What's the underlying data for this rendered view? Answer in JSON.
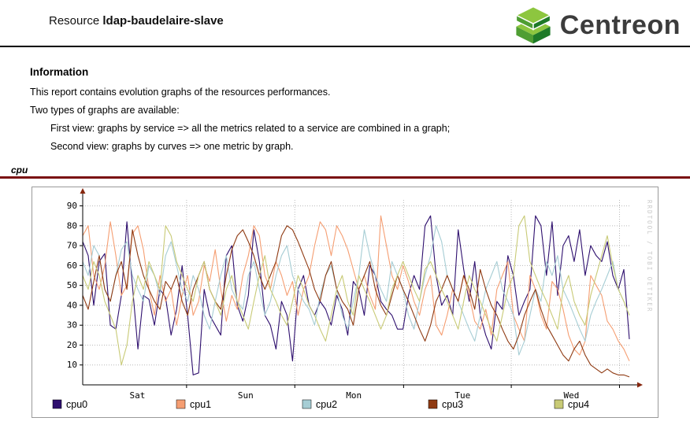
{
  "header": {
    "prefix": "Resource",
    "resource_name": "ldap-baudelaire-slave",
    "logo_text": "Centreon",
    "logo_colors": {
      "top": "#8dc63f",
      "left": "#4f9e33",
      "right": "#1e7a28"
    }
  },
  "info": {
    "title": "Information",
    "intro": "This report contains evolution graphs of the resources performances.",
    "subtitle": "Two types of graphs are available:",
    "items": [
      "First view: graphs by service => all the metrics related to a service are combined in a graph;",
      "Second view: graphs by curves => one metric by graph."
    ]
  },
  "section": {
    "label": "cpu",
    "divider_color": "#7a1012"
  },
  "chart_data": {
    "type": "line",
    "title": "cpu",
    "watermark": "RRDTOOL / TOBI OETIKER",
    "ylim": [
      0,
      93
    ],
    "yticks": [
      10,
      20,
      30,
      40,
      50,
      60,
      70,
      80,
      90
    ],
    "xticklabels": [
      "Sat",
      "Sun",
      "Mon",
      "Tue",
      "Wed"
    ],
    "xtick_positions": [
      0.1,
      0.298,
      0.496,
      0.695,
      0.894
    ],
    "grid_positions": [
      0.19,
      0.388,
      0.587,
      0.784,
      0.982
    ],
    "grid": true,
    "legend_position": "bottom",
    "colors": {
      "grid": "#b9b9b9",
      "axis": "#000000",
      "arrow": "#86260e",
      "watermark": "#c9c9c9"
    },
    "series": [
      {
        "name": "cpu0",
        "color": "#2e0f6e",
        "values": [
          72,
          65,
          40,
          62,
          66,
          30,
          28,
          45,
          82,
          50,
          18,
          45,
          43,
          30,
          48,
          44,
          25,
          38,
          60,
          35,
          5,
          6,
          48,
          35,
          30,
          25,
          65,
          70,
          40,
          32,
          45,
          78,
          62,
          35,
          30,
          18,
          42,
          35,
          12,
          48,
          55,
          40,
          35,
          42,
          38,
          30,
          45,
          38,
          25,
          52,
          48,
          35,
          60,
          55,
          42,
          38,
          35,
          28,
          28,
          45,
          55,
          48,
          80,
          85,
          55,
          40,
          45,
          35,
          78,
          58,
          42,
          62,
          35,
          25,
          18,
          42,
          38,
          65,
          55,
          35,
          42,
          48,
          85,
          80,
          55,
          82,
          45,
          70,
          75,
          62,
          78,
          55,
          70,
          65,
          62,
          72,
          55,
          48,
          58,
          23
        ]
      },
      {
        "name": "cpu1",
        "color": "#f59e72",
        "values": [
          75,
          80,
          55,
          48,
          60,
          82,
          65,
          45,
          50,
          76,
          80,
          68,
          48,
          35,
          55,
          42,
          48,
          30,
          45,
          55,
          35,
          42,
          60,
          52,
          68,
          48,
          32,
          45,
          38,
          55,
          65,
          80,
          75,
          55,
          48,
          62,
          55,
          45,
          52,
          35,
          48,
          55,
          70,
          82,
          78,
          65,
          80,
          75,
          68,
          58,
          48,
          55,
          45,
          38,
          85,
          70,
          55,
          48,
          60,
          52,
          42,
          35,
          48,
          55,
          30,
          25,
          35,
          48,
          42,
          55,
          45,
          32,
          28,
          38,
          25,
          48,
          55,
          62,
          35,
          28,
          22,
          55,
          48,
          35,
          28,
          52,
          48,
          38,
          25,
          18,
          15,
          22,
          55,
          50,
          45,
          32,
          28,
          22,
          18,
          12
        ]
      },
      {
        "name": "cpu2",
        "color": "#a6cdd4",
        "values": [
          62,
          55,
          70,
          65,
          48,
          42,
          55,
          68,
          72,
          55,
          48,
          42,
          60,
          55,
          45,
          65,
          72,
          60,
          48,
          42,
          55,
          48,
          35,
          28,
          42,
          55,
          65,
          48,
          42,
          38,
          55,
          62,
          48,
          35,
          42,
          55,
          65,
          70,
          55,
          48,
          42,
          38,
          30,
          45,
          55,
          60,
          48,
          35,
          28,
          42,
          55,
          78,
          65,
          55,
          48,
          42,
          62,
          55,
          48,
          35,
          28,
          42,
          55,
          65,
          80,
          72,
          55,
          48,
          42,
          35,
          28,
          22,
          35,
          48,
          55,
          62,
          48,
          42,
          35,
          15,
          22,
          35,
          48,
          42,
          62,
          55,
          65,
          48,
          42,
          35,
          28,
          22,
          35,
          42,
          48,
          55,
          62,
          48,
          42,
          35
        ]
      },
      {
        "name": "cpu3",
        "color": "#8f3a12",
        "values": [
          45,
          38,
          52,
          65,
          48,
          42,
          55,
          62,
          48,
          78,
          65,
          55,
          48,
          42,
          38,
          52,
          48,
          55,
          42,
          35,
          48,
          55,
          62,
          48,
          42,
          38,
          55,
          68,
          75,
          78,
          72,
          65,
          55,
          48,
          55,
          62,
          75,
          80,
          78,
          72,
          65,
          58,
          48,
          42,
          55,
          62,
          48,
          42,
          38,
          30,
          48,
          55,
          62,
          48,
          40,
          35,
          45,
          55,
          48,
          42,
          35,
          28,
          22,
          30,
          42,
          48,
          55,
          48,
          42,
          55,
          48,
          38,
          58,
          48,
          40,
          35,
          28,
          22,
          18,
          25,
          35,
          42,
          48,
          38,
          30,
          25,
          20,
          15,
          12,
          18,
          22,
          15,
          10,
          8,
          6,
          8,
          6,
          5,
          5,
          4
        ]
      },
      {
        "name": "cpu4",
        "color": "#c8ca76",
        "values": [
          55,
          48,
          62,
          55,
          42,
          35,
          28,
          10,
          20,
          42,
          55,
          48,
          62,
          55,
          48,
          80,
          75,
          62,
          55,
          48,
          42,
          55,
          62,
          48,
          42,
          35,
          48,
          55,
          42,
          35,
          28,
          42,
          55,
          65,
          48,
          42,
          35,
          30,
          42,
          55,
          48,
          40,
          35,
          28,
          22,
          35,
          48,
          55,
          42,
          35,
          55,
          48,
          42,
          35,
          28,
          35,
          48,
          55,
          62,
          55,
          48,
          42,
          58,
          62,
          55,
          48,
          42,
          35,
          28,
          42,
          55,
          48,
          42,
          35,
          28,
          22,
          35,
          48,
          55,
          80,
          85,
          62,
          55,
          48,
          42,
          35,
          28,
          48,
          55,
          42,
          35,
          30,
          45,
          55,
          65,
          75,
          60,
          48,
          42,
          35
        ]
      }
    ]
  }
}
